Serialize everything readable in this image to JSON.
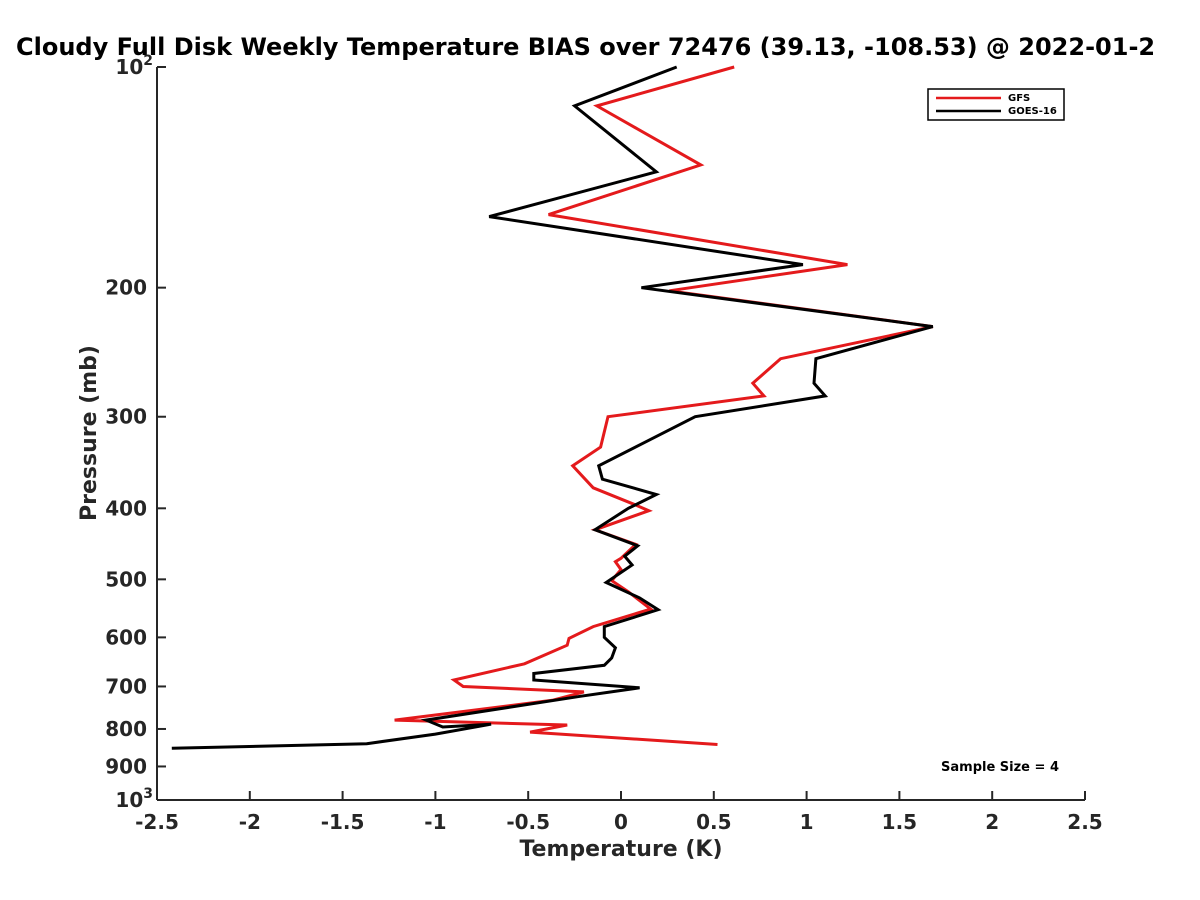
{
  "chart_data": {
    "type": "line",
    "title": "Cloudy Full Disk Weekly Temperature BIAS over 72476 (39.13, -108.53) @ 2022-01-2",
    "xlabel": "Temperature (K)",
    "ylabel": "Pressure (mb)",
    "xlim": [
      -2.5,
      2.5
    ],
    "ylim": [
      100,
      1000
    ],
    "y_scale": "log",
    "y_direction": "reversed",
    "grid": false,
    "legend_placement": "top-right",
    "x_ticks": [
      -2.5,
      -2,
      -1.5,
      -1,
      -0.5,
      0,
      0.5,
      1,
      1.5,
      2,
      2.5
    ],
    "x_tick_labels": [
      "-2.5",
      "-2",
      "-1.5",
      "-1",
      "-0.5",
      "0",
      "0.5",
      "1",
      "1.5",
      "2",
      "2.5"
    ],
    "y_ticks": [
      {
        "value": 100,
        "label": "10",
        "exp": "2"
      },
      {
        "value": 200,
        "label": "200",
        "exp": ""
      },
      {
        "value": 300,
        "label": "300",
        "exp": ""
      },
      {
        "value": 400,
        "label": "400",
        "exp": ""
      },
      {
        "value": 500,
        "label": "500",
        "exp": ""
      },
      {
        "value": 600,
        "label": "600",
        "exp": ""
      },
      {
        "value": 700,
        "label": "700",
        "exp": ""
      },
      {
        "value": 800,
        "label": "800",
        "exp": ""
      },
      {
        "value": 900,
        "label": "900",
        "exp": ""
      },
      {
        "value": 1000,
        "label": "10",
        "exp": "3"
      }
    ],
    "series": [
      {
        "name": "GFS",
        "color": "#e41a1c",
        "points": [
          [
            0.61,
            100
          ],
          [
            -0.13,
            113
          ],
          [
            0.43,
            136
          ],
          [
            -0.39,
            159
          ],
          [
            1.22,
            186
          ],
          [
            0.26,
            202
          ],
          [
            1.68,
            226
          ],
          [
            0.86,
            250
          ],
          [
            0.71,
            270
          ],
          [
            0.77,
            281
          ],
          [
            -0.07,
            300
          ],
          [
            -0.11,
            330
          ],
          [
            -0.26,
            350
          ],
          [
            -0.15,
            375
          ],
          [
            0.07,
            395
          ],
          [
            0.15,
            403
          ],
          [
            -0.14,
            428
          ],
          [
            0.08,
            448
          ],
          [
            0.0,
            468
          ],
          [
            -0.03,
            473
          ],
          [
            0.0,
            485
          ],
          [
            -0.05,
            502
          ],
          [
            0.04,
            520
          ],
          [
            0.16,
            549
          ],
          [
            -0.15,
            580
          ],
          [
            -0.28,
            602
          ],
          [
            -0.29,
            615
          ],
          [
            -0.52,
            652
          ],
          [
            -0.9,
            686
          ],
          [
            -0.85,
            700
          ],
          [
            -0.2,
            712
          ],
          [
            -0.37,
            731
          ],
          [
            -1.22,
            778
          ],
          [
            -0.29,
            790
          ],
          [
            -0.49,
            808
          ],
          [
            0.52,
            840
          ]
        ]
      },
      {
        "name": "GOES-16",
        "color": "#000000",
        "points": [
          [
            0.3,
            100
          ],
          [
            -0.25,
            113
          ],
          [
            0.19,
            139
          ],
          [
            -0.71,
            160
          ],
          [
            0.98,
            186
          ],
          [
            0.11,
            200
          ],
          [
            1.68,
            226
          ],
          [
            1.05,
            250
          ],
          [
            1.04,
            270
          ],
          [
            1.1,
            281
          ],
          [
            0.4,
            300
          ],
          [
            0.13,
            325
          ],
          [
            -0.12,
            350
          ],
          [
            -0.1,
            365
          ],
          [
            0.19,
            383
          ],
          [
            0.04,
            400
          ],
          [
            -0.14,
            428
          ],
          [
            0.09,
            450
          ],
          [
            0.02,
            465
          ],
          [
            0.06,
            478
          ],
          [
            -0.08,
            505
          ],
          [
            0.1,
            530
          ],
          [
            0.2,
            550
          ],
          [
            -0.09,
            580
          ],
          [
            -0.09,
            600
          ],
          [
            -0.03,
            620
          ],
          [
            -0.05,
            640
          ],
          [
            -0.09,
            655
          ],
          [
            -0.47,
            672
          ],
          [
            -0.47,
            686
          ],
          [
            0.1,
            703
          ],
          [
            -0.22,
            722
          ],
          [
            -1.05,
            778
          ],
          [
            -0.96,
            795
          ],
          [
            -0.7,
            788
          ],
          [
            -1.0,
            813
          ],
          [
            -1.37,
            838
          ],
          [
            -2.42,
            850
          ]
        ]
      }
    ],
    "annotation": "Sample Size = 4"
  }
}
